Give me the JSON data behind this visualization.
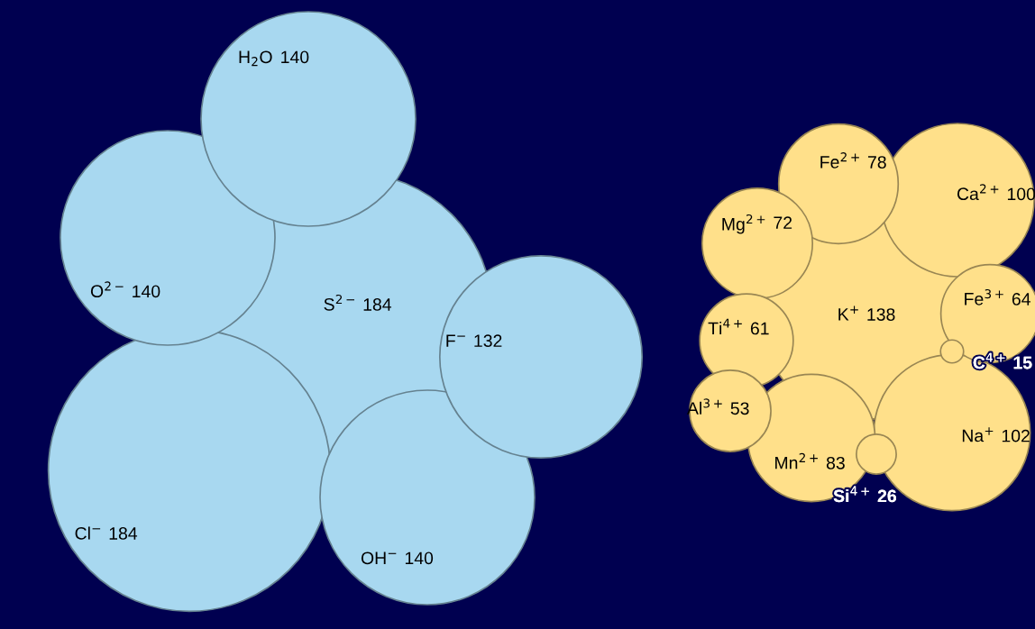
{
  "chart_data": {
    "type": "other",
    "categories": [
      "S$^{2−}$",
      "Cl$^{−}$",
      "O$^{2−}$",
      "OH$^{−}$",
      "H$_{2}$O",
      "F$^{−}$",
      "K$^{+}$",
      "Na$^{+}$",
      "Ca$^{2+}$",
      "Mn$^{2+}$",
      "Fe$^{2+}$",
      "Mg$^{2+}$",
      "Fe$^{3+}$",
      "Ti$^{4+}$",
      "Al$^{3+}$",
      "Si$^{4+}$",
      "C$^{4+}$"
    ],
    "data_labels": true,
    "values": [
      184,
      184,
      140,
      140,
      140,
      132,
      138,
      102,
      100,
      83,
      78,
      72,
      64,
      61,
      53,
      26,
      15
    ],
    "colors": [
      "#a8d8f0",
      "#a8d8f0",
      "#a8d8f0",
      "#a8d8f0",
      "#a8d8f0",
      "#a8d8f0",
      "#ffe08a",
      "#ffe08a",
      "#ffe08a",
      "#ffe08a",
      "#ffe08a",
      "#ffe08a",
      "#ffe08a",
      "#ffe08a",
      "#ffe08a",
      "#ffe08a",
      "#ffe08a"
    ]
  }
}
